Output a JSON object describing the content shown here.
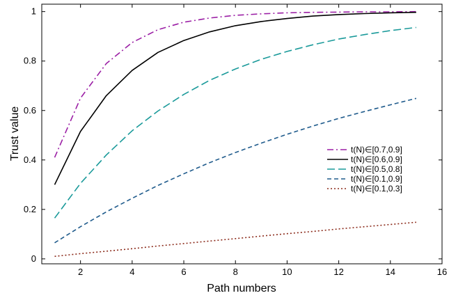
{
  "chart_data": {
    "type": "line",
    "xlabel": "Path numbers",
    "ylabel": "Trust value",
    "xlim": [
      0.5,
      16
    ],
    "ylim": [
      -0.02,
      1.03
    ],
    "xticks": [
      2,
      4,
      6,
      8,
      10,
      12,
      14,
      16
    ],
    "yticks": [
      0,
      0.2,
      0.4,
      0.6,
      0.8,
      1
    ],
    "ytick_labels": [
      "0",
      "0.2",
      "0.4",
      "0.6",
      "0.8",
      "1"
    ],
    "grid": false,
    "legend_position": "right",
    "x": [
      1,
      2,
      3,
      4,
      5,
      6,
      7,
      8,
      9,
      10,
      11,
      12,
      13,
      14,
      15
    ],
    "series": [
      {
        "name": "t(N)∈[0.7,0.9]",
        "color": "#9b1fa5",
        "style": "dashdot",
        "values": [
          0.41,
          0.65,
          0.79,
          0.875,
          0.927,
          0.957,
          0.974,
          0.985,
          0.991,
          0.995,
          0.997,
          0.998,
          0.999,
          0.999,
          1.0
        ]
      },
      {
        "name": "t(N)∈[0.6,0.9]",
        "color": "#000000",
        "style": "solid",
        "values": [
          0.3,
          0.515,
          0.66,
          0.762,
          0.835,
          0.883,
          0.918,
          0.943,
          0.96,
          0.972,
          0.982,
          0.988,
          0.992,
          0.995,
          0.997
        ]
      },
      {
        "name": "t(N)∈[0.5,0.8]",
        "color": "#1a9a9a",
        "style": "dash",
        "values": [
          0.165,
          0.305,
          0.42,
          0.518,
          0.598,
          0.665,
          0.722,
          0.768,
          0.807,
          0.839,
          0.866,
          0.889,
          0.907,
          0.923,
          0.936
        ]
      },
      {
        "name": "t(N)∈[0.1,0.9]",
        "color": "#1f5b8c",
        "style": "shortdash",
        "values": [
          0.065,
          0.13,
          0.19,
          0.245,
          0.297,
          0.344,
          0.389,
          0.43,
          0.468,
          0.504,
          0.537,
          0.568,
          0.596,
          0.623,
          0.649
        ]
      },
      {
        "name": "t(N)∈[0.1,0.3]",
        "color": "#8b2a1a",
        "style": "dot",
        "values": [
          0.01,
          0.021,
          0.031,
          0.041,
          0.052,
          0.062,
          0.072,
          0.082,
          0.092,
          0.102,
          0.111,
          0.121,
          0.13,
          0.139,
          0.148
        ]
      }
    ]
  }
}
